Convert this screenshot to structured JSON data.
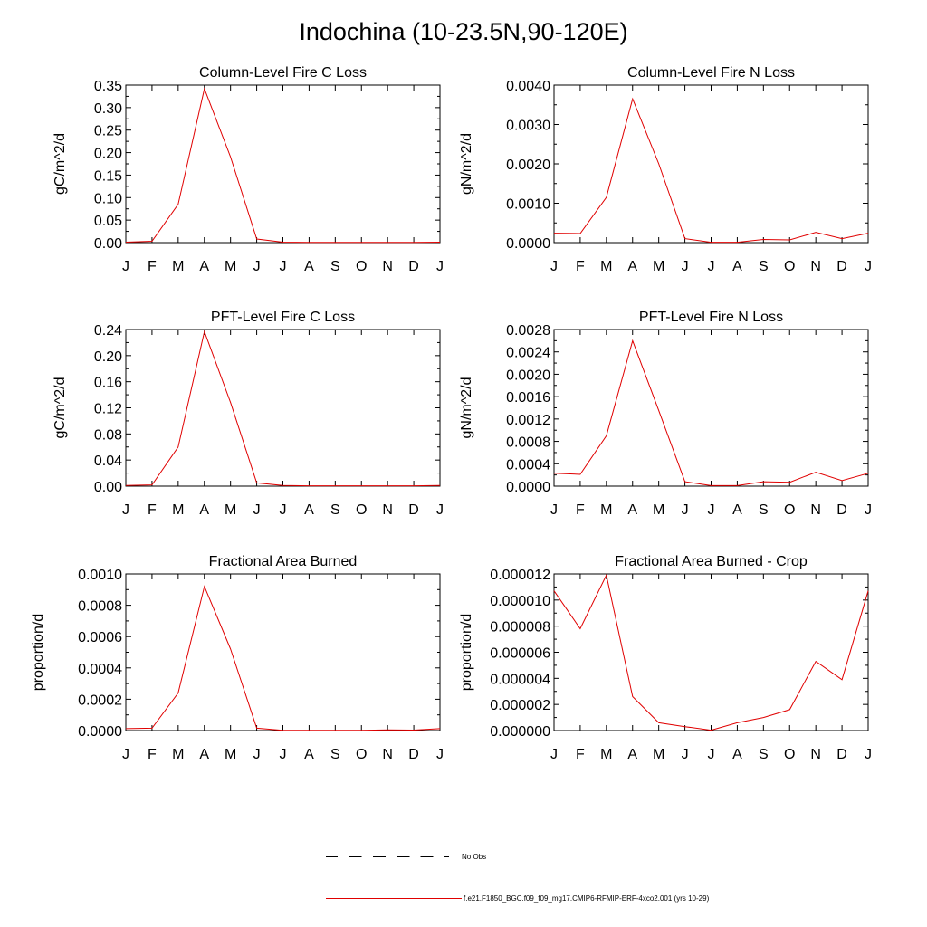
{
  "title": "Indochina (10-23.5N,90-120E)",
  "months": [
    "J",
    "F",
    "M",
    "A",
    "M",
    "J",
    "J",
    "A",
    "S",
    "O",
    "N",
    "D",
    "J"
  ],
  "line_color": "#e00000",
  "legend": {
    "obs_label": "No Obs",
    "model_label": "f.e21.F1850_BGC.f09_f09_mg17.CMIP6-RFMIP-ERF-4xco2.001 (yrs 10-29)"
  },
  "chart_data": [
    {
      "type": "line",
      "title": "Column-Level Fire C Loss",
      "ylabel": "gC/m^2/d",
      "xlabel": "",
      "categories": [
        "J",
        "F",
        "M",
        "A",
        "M",
        "J",
        "J",
        "A",
        "S",
        "O",
        "N",
        "D",
        "J"
      ],
      "ylim": [
        0,
        0.35
      ],
      "yticks": [
        0,
        0.05,
        0.1,
        0.15,
        0.2,
        0.25,
        0.3,
        0.35
      ],
      "ytick_labels": [
        "0.00",
        "0.05",
        "0.10",
        "0.15",
        "0.20",
        "0.25",
        "0.30",
        "0.35"
      ],
      "series": [
        {
          "name": "model",
          "values": [
            0.001,
            0.003,
            0.085,
            0.342,
            0.19,
            0.008,
            0.001,
            0.0005,
            0.0005,
            0.0005,
            0.0005,
            0.0005,
            0.001
          ]
        }
      ]
    },
    {
      "type": "line",
      "title": "Column-Level Fire N Loss",
      "ylabel": "gN/m^2/d",
      "xlabel": "",
      "categories": [
        "J",
        "F",
        "M",
        "A",
        "M",
        "J",
        "J",
        "A",
        "S",
        "O",
        "N",
        "D",
        "J"
      ],
      "ylim": [
        0,
        0.004
      ],
      "yticks": [
        0,
        0.001,
        0.002,
        0.003,
        0.004
      ],
      "ytick_labels": [
        "0.0000",
        "0.0010",
        "0.0020",
        "0.0030",
        "0.0040"
      ],
      "series": [
        {
          "name": "model",
          "values": [
            0.00024,
            0.00023,
            0.00115,
            0.00365,
            0.002,
            0.0001,
            1e-05,
            1e-05,
            8e-05,
            7e-05,
            0.00026,
            0.0001,
            0.00024
          ]
        }
      ]
    },
    {
      "type": "line",
      "title": "PFT-Level Fire C Loss",
      "ylabel": "gC/m^2/d",
      "xlabel": "",
      "categories": [
        "J",
        "F",
        "M",
        "A",
        "M",
        "J",
        "J",
        "A",
        "S",
        "O",
        "N",
        "D",
        "J"
      ],
      "ylim": [
        0,
        0.24
      ],
      "yticks": [
        0,
        0.04,
        0.08,
        0.12,
        0.16,
        0.2,
        0.24
      ],
      "ytick_labels": [
        "0.00",
        "0.04",
        "0.08",
        "0.12",
        "0.16",
        "0.20",
        "0.24"
      ],
      "series": [
        {
          "name": "model",
          "values": [
            0.001,
            0.002,
            0.06,
            0.237,
            0.128,
            0.005,
            0.001,
            0.0005,
            0.0005,
            0.0005,
            0.0005,
            0.0005,
            0.001
          ]
        }
      ]
    },
    {
      "type": "line",
      "title": "PFT-Level Fire N Loss",
      "ylabel": "gN/m^2/d",
      "xlabel": "",
      "categories": [
        "J",
        "F",
        "M",
        "A",
        "M",
        "J",
        "J",
        "A",
        "S",
        "O",
        "N",
        "D",
        "J"
      ],
      "ylim": [
        0,
        0.0028
      ],
      "yticks": [
        0,
        0.0004,
        0.0008,
        0.0012,
        0.0016,
        0.002,
        0.0024,
        0.0028
      ],
      "ytick_labels": [
        "0.0000",
        "0.0004",
        "0.0008",
        "0.0012",
        "0.0016",
        "0.0020",
        "0.0024",
        "0.0028"
      ],
      "series": [
        {
          "name": "model",
          "values": [
            0.00023,
            0.00021,
            0.0009,
            0.0026,
            0.00135,
            8e-05,
            1e-05,
            1e-05,
            8e-05,
            7e-05,
            0.00025,
            0.0001,
            0.00023
          ]
        }
      ]
    },
    {
      "type": "line",
      "title": "Fractional Area Burned",
      "ylabel": "proportion/d",
      "xlabel": "",
      "categories": [
        "J",
        "F",
        "M",
        "A",
        "M",
        "J",
        "J",
        "A",
        "S",
        "O",
        "N",
        "D",
        "J"
      ],
      "ylim": [
        0,
        0.001
      ],
      "yticks": [
        0,
        0.0002,
        0.0004,
        0.0006,
        0.0008,
        0.001
      ],
      "ytick_labels": [
        "0.0000",
        "0.0002",
        "0.0004",
        "0.0006",
        "0.0008",
        "0.0010"
      ],
      "series": [
        {
          "name": "model",
          "values": [
            1.2e-05,
            1.5e-05,
            0.00024,
            0.00092,
            0.00052,
            1.5e-05,
            1e-06,
            1e-06,
            1e-06,
            1e-06,
            4e-06,
            3e-06,
            1.2e-05
          ]
        }
      ]
    },
    {
      "type": "line",
      "title": "Fractional Area Burned - Crop",
      "ylabel": "proportion/d",
      "xlabel": "",
      "categories": [
        "J",
        "F",
        "M",
        "A",
        "M",
        "J",
        "J",
        "A",
        "S",
        "O",
        "N",
        "D",
        "J"
      ],
      "ylim": [
        0,
        1.2e-05
      ],
      "yticks": [
        0,
        2e-06,
        4e-06,
        6e-06,
        8e-06,
        1e-05,
        1.2e-05
      ],
      "ytick_labels": [
        "0.000000",
        "0.000002",
        "0.000004",
        "0.000006",
        "0.000008",
        "0.000010",
        "0.000012"
      ],
      "series": [
        {
          "name": "model",
          "values": [
            1.07e-05,
            7.8e-06,
            1.19e-05,
            2.6e-06,
            6e-07,
            3e-07,
            3e-08,
            6e-07,
            1e-06,
            1.6e-06,
            5.3e-06,
            3.9e-06,
            1.07e-05
          ]
        }
      ]
    }
  ]
}
